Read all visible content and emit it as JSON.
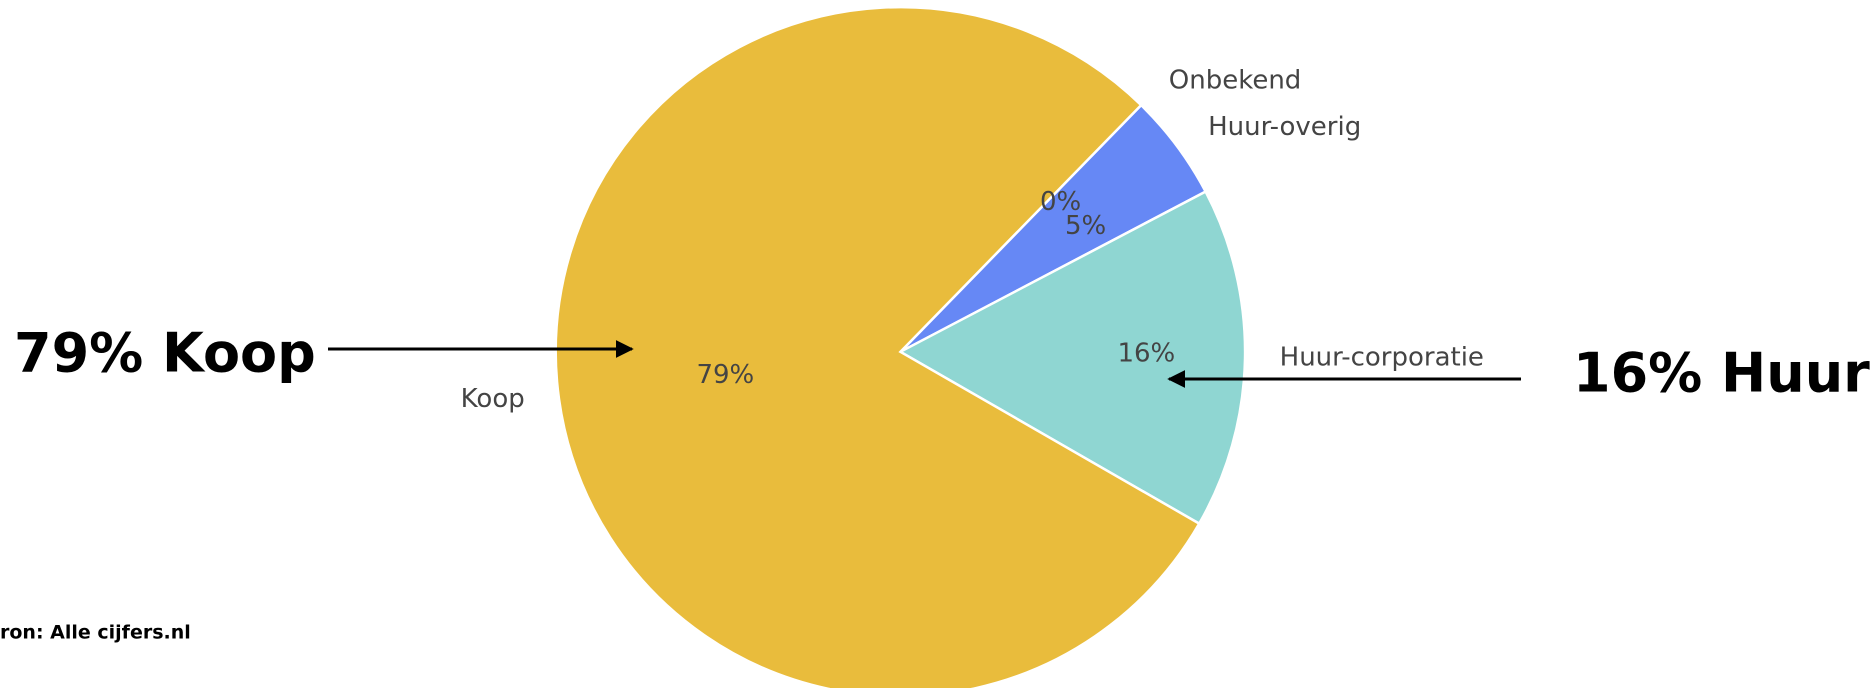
{
  "chart_data": {
    "type": "pie",
    "categories": [
      "Onbekend",
      "Huur-overig",
      "Huur-corporatie",
      "Koop"
    ],
    "values": [
      0,
      5,
      16,
      79
    ],
    "value_labels": [
      "0%",
      "5%",
      "16%",
      "79%"
    ],
    "colors": [
      "#c9c9c9",
      "#6688f5",
      "#8fd6d2",
      "#e9bc3c"
    ],
    "annotations": [
      "79% Koop",
      "16% Huur"
    ],
    "source": "ron: Alle cijfers.nl"
  }
}
